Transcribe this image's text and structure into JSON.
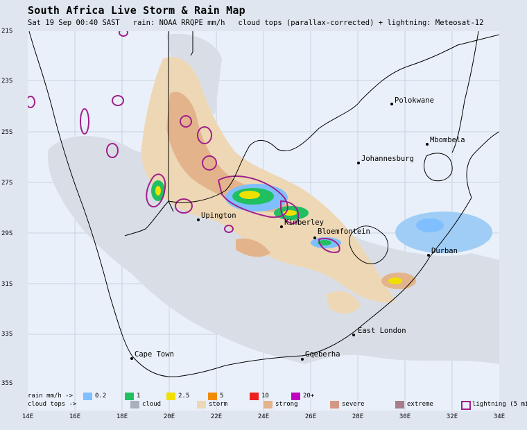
{
  "header": {
    "title": "South Africa Live Storm & Rain Map",
    "subtitle": "Sat 19 Sep 00:40 SAST   rain: NOAA RRQPE mm/h   cloud tops (parallax-corrected) + lightning: Meteosat-12"
  },
  "axes": {
    "y_ticks": [
      "21S",
      "23S",
      "25S",
      "27S",
      "29S",
      "31S",
      "33S",
      "35S"
    ],
    "x_ticks": [
      "14E",
      "16E",
      "18E",
      "20E",
      "22E",
      "24E",
      "26E",
      "28E",
      "30E",
      "32E",
      "34E"
    ]
  },
  "cities": [
    {
      "name": "Polokwane"
    },
    {
      "name": "Mbombela"
    },
    {
      "name": "Johannesburg"
    },
    {
      "name": "Upington"
    },
    {
      "name": "Kimberley"
    },
    {
      "name": "Bloemfontein"
    },
    {
      "name": "Durban"
    },
    {
      "name": "East London"
    },
    {
      "name": "Cape Town"
    },
    {
      "name": "Gqeberha"
    }
  ],
  "legend": {
    "rain_label": "rain mm/h ->",
    "cloud_label": "cloud tops ->",
    "rain": [
      {
        "label": "0.2",
        "color": "#7fbfff"
      },
      {
        "label": "1",
        "color": "#20c060"
      },
      {
        "label": "2.5",
        "color": "#f0e000"
      },
      {
        "label": "5",
        "color": "#f08c00"
      },
      {
        "label": "10",
        "color": "#f02020"
      },
      {
        "label": "20+",
        "color": "#c000c0"
      }
    ],
    "cloud": [
      {
        "label": "cloud",
        "color": "#a9b1bc"
      },
      {
        "label": "storm",
        "color": "#eed7b4"
      },
      {
        "label": "strong",
        "color": "#e3b48c"
      },
      {
        "label": "severe",
        "color": "#d29884"
      },
      {
        "label": "extreme",
        "color": "#a97c8a"
      },
      {
        "label": "lightning (5 min)",
        "color": "#a0208a"
      }
    ]
  },
  "colors": {
    "sea": "#e9f0f9",
    "land": "#eef2f8",
    "grid": "#c8d2df",
    "border": "#000000"
  }
}
